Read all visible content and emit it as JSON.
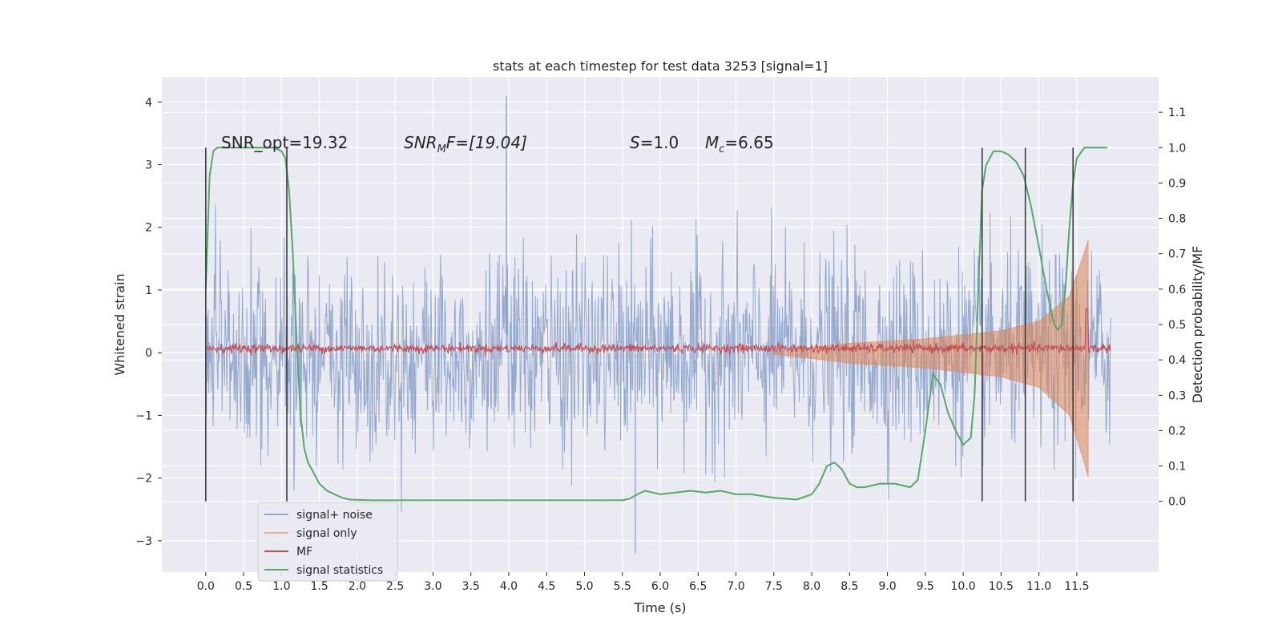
{
  "chart_data": {
    "type": "line",
    "title": "stats at each timestep for test data 3253 [signal=1]",
    "xlabel": "Time (s)",
    "ylabel": "Whitened strain",
    "y2label": "Detection probability/MF",
    "xlim": [
      -0.58,
      12.58
    ],
    "ylim": [
      -3.5,
      4.4
    ],
    "y2lim": [
      -0.2,
      1.2
    ],
    "x_ticks": [
      "0.0",
      "0.5",
      "1.0",
      "1.5",
      "2.0",
      "2.5",
      "3.0",
      "3.5",
      "4.0",
      "4.5",
      "5.0",
      "5.5",
      "6.0",
      "6.5",
      "7.0",
      "7.5",
      "8.0",
      "8.5",
      "9.0",
      "9.5",
      "10.0",
      "10.5",
      "11.0",
      "11.5"
    ],
    "y_ticks": [
      "−3",
      "−2",
      "−1",
      "0",
      "1",
      "2",
      "3",
      "4"
    ],
    "y2_ticks": [
      "0.0",
      "0.1",
      "0.2",
      "0.3",
      "0.4",
      "0.5",
      "0.6",
      "0.7",
      "0.8",
      "0.9",
      "1.0",
      "1.1"
    ],
    "grid": true,
    "legend_position": "bottom-left",
    "annotations": {
      "snr_opt": "SNR_opt=19.32",
      "snr_mf_base": "SNR",
      "snr_mf_sub": "M",
      "snr_mf_rest": "F=[19.04]",
      "s_var": "S",
      "s_rest": "=1.0",
      "mc_var": "M",
      "mc_sub": "c",
      "mc_rest": "=6.65"
    },
    "vertical_markers_s": [
      0.0,
      1.07,
      10.25,
      10.82,
      11.45
    ],
    "series": [
      {
        "name": "signal+ noise",
        "color": "#4c72b0",
        "kind": "noise",
        "axis": "left",
        "typical_range": [
          -1.7,
          1.8
        ],
        "max_spikes": [
          4.1,
          -3.2
        ]
      },
      {
        "name": "signal only",
        "color": "#dd8452",
        "kind": "chirp",
        "axis": "left",
        "envelope": [
          [
            7.5,
            0.02
          ],
          [
            8.5,
            0.15
          ],
          [
            9.5,
            0.22
          ],
          [
            10.5,
            0.35
          ],
          [
            11.0,
            0.5
          ],
          [
            11.4,
            0.9
          ],
          [
            11.6,
            1.6
          ],
          [
            11.65,
            1.8
          ]
        ]
      },
      {
        "name": "MF",
        "color": "#c44e52",
        "kind": "flat-noise",
        "axis": "left",
        "mean": 0.07,
        "final_peak": [
          11.63,
          0.7
        ]
      },
      {
        "name": "signal statistics",
        "color": "#55a868",
        "kind": "line",
        "axis": "right",
        "x": [
          0.0,
          0.05,
          0.1,
          0.15,
          0.2,
          0.3,
          0.5,
          0.7,
          0.9,
          1.0,
          1.05,
          1.1,
          1.15,
          1.2,
          1.25,
          1.3,
          1.35,
          1.4,
          1.5,
          1.6,
          1.7,
          1.8,
          1.9,
          2.0,
          2.2,
          2.5,
          3.0,
          3.5,
          4.0,
          4.5,
          5.0,
          5.5,
          5.6,
          5.7,
          5.8,
          5.9,
          6.0,
          6.2,
          6.4,
          6.6,
          6.8,
          7.0,
          7.2,
          7.5,
          7.8,
          8.0,
          8.1,
          8.2,
          8.3,
          8.4,
          8.5,
          8.6,
          8.7,
          8.9,
          9.1,
          9.3,
          9.4,
          9.5,
          9.6,
          9.7,
          9.8,
          9.9,
          10.0,
          10.1,
          10.15,
          10.2,
          10.25,
          10.3,
          10.4,
          10.5,
          10.6,
          10.7,
          10.8,
          10.9,
          11.0,
          11.1,
          11.2,
          11.25,
          11.3,
          11.35,
          11.4,
          11.45,
          11.5,
          11.6,
          11.7,
          11.9
        ],
        "y": [
          0.6,
          0.92,
          0.99,
          1.0,
          1.0,
          1.0,
          1.0,
          1.0,
          1.0,
          0.99,
          0.97,
          0.88,
          0.7,
          0.45,
          0.25,
          0.15,
          0.11,
          0.09,
          0.05,
          0.03,
          0.02,
          0.01,
          0.005,
          0.004,
          0.003,
          0.003,
          0.003,
          0.003,
          0.003,
          0.003,
          0.003,
          0.003,
          0.008,
          0.02,
          0.03,
          0.025,
          0.02,
          0.025,
          0.03,
          0.025,
          0.03,
          0.02,
          0.02,
          0.01,
          0.005,
          0.02,
          0.05,
          0.1,
          0.11,
          0.09,
          0.05,
          0.04,
          0.04,
          0.05,
          0.05,
          0.04,
          0.06,
          0.2,
          0.36,
          0.33,
          0.25,
          0.2,
          0.16,
          0.18,
          0.3,
          0.6,
          0.88,
          0.95,
          0.99,
          0.99,
          0.98,
          0.96,
          0.92,
          0.83,
          0.72,
          0.6,
          0.5,
          0.485,
          0.5,
          0.6,
          0.77,
          0.9,
          0.97,
          1.0,
          1.0,
          1.0
        ]
      }
    ]
  }
}
